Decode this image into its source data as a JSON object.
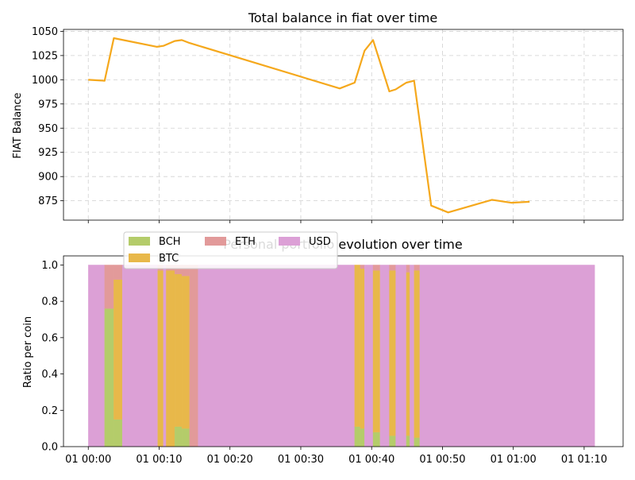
{
  "chart_data": [
    {
      "type": "line",
      "title": "Total balance in fiat over time",
      "xlabel": "",
      "ylabel": "FIAT Balance",
      "ylim": [
        855,
        1052
      ],
      "xlim": [
        -3.5,
        75.5
      ],
      "grid": true,
      "x_ticks": [
        0,
        10,
        20,
        30,
        40,
        50,
        60,
        70
      ],
      "y_ticks": [
        875,
        900,
        925,
        950,
        975,
        1000,
        1025,
        1050
      ],
      "y_tick_labels": [
        "875",
        "900",
        "925",
        "950",
        "975",
        "1000",
        "1025",
        "1050"
      ],
      "line_color": "#f5a81c",
      "series": [
        {
          "name": "FIAT Balance",
          "x": [
            0,
            2.3,
            3.6,
            9.7,
            10.6,
            12.2,
            13.2,
            14.3,
            35.5,
            37.6,
            39.0,
            40.2,
            42.5,
            43.4,
            44.9,
            46.0,
            48.4,
            50.8,
            57.0,
            59.7,
            62.3
          ],
          "y": [
            1000,
            999,
            1043,
            1034,
            1035,
            1040,
            1041,
            1038,
            991,
            997,
            1030,
            1041,
            988,
            990,
            997,
            999,
            870,
            863,
            876,
            873,
            874
          ]
        }
      ]
    },
    {
      "type": "area",
      "stacked": true,
      "title": "Personal portfolio evolution over time",
      "xlabel": "",
      "ylabel": "Ratio per coin",
      "ylim": [
        0,
        1.05
      ],
      "xlim": [
        -3.5,
        75.5
      ],
      "grid": false,
      "x_ticks": [
        0,
        10,
        20,
        30,
        40,
        50,
        60,
        70
      ],
      "x_tick_labels": [
        "01 00:00",
        "01 00:10",
        "01 00:20",
        "01 00:30",
        "01 00:40",
        "01 00:50",
        "01 01:00",
        "01 01:10"
      ],
      "y_ticks": [
        0,
        0.2,
        0.4,
        0.6,
        0.8,
        1.0
      ],
      "y_tick_labels": [
        "0.0",
        "0.2",
        "0.4",
        "0.6",
        "0.8",
        "1.0"
      ],
      "legend": {
        "location": "upper-left",
        "columns": 3,
        "entries": [
          {
            "label": "BCH",
            "color": "#b4cc6a"
          },
          {
            "label": "BTC",
            "color": "#e8b84a"
          },
          {
            "label": "ETH",
            "color": "#e29a9a"
          },
          {
            "label": "USD",
            "color": "#dca0d6"
          }
        ]
      },
      "segments": [
        {
          "x0": 0,
          "x1": 2.3,
          "BCH": 0,
          "BTC": 0,
          "ETH": 0,
          "USD": 1
        },
        {
          "x0": 2.3,
          "x1": 3.6,
          "BCH": 0.76,
          "BTC": 0,
          "ETH": 0.24,
          "USD": 0
        },
        {
          "x0": 3.6,
          "x1": 4.8,
          "BCH": 0.15,
          "BTC": 0.77,
          "ETH": 0.08,
          "USD": 0
        },
        {
          "x0": 4.8,
          "x1": 9.8,
          "BCH": 0,
          "BTC": 0,
          "ETH": 0,
          "USD": 1
        },
        {
          "x0": 9.8,
          "x1": 10.6,
          "BCH": 0,
          "BTC": 0.97,
          "ETH": 0.03,
          "USD": 0
        },
        {
          "x0": 10.6,
          "x1": 11.0,
          "BCH": 0,
          "BTC": 0,
          "ETH": 0,
          "USD": 1
        },
        {
          "x0": 11.0,
          "x1": 12.2,
          "BCH": 0,
          "BTC": 0.97,
          "ETH": 0.03,
          "USD": 0
        },
        {
          "x0": 12.2,
          "x1": 13.2,
          "BCH": 0.11,
          "BTC": 0.84,
          "ETH": 0.05,
          "USD": 0
        },
        {
          "x0": 13.2,
          "x1": 14.3,
          "BCH": 0.1,
          "BTC": 0.84,
          "ETH": 0.06,
          "USD": 0
        },
        {
          "x0": 14.3,
          "x1": 15.5,
          "BCH": 0,
          "BTC": 0,
          "ETH": 1.0,
          "USD": 0
        },
        {
          "x0": 15.5,
          "x1": 35.5,
          "BCH": 0,
          "BTC": 0,
          "ETH": 0,
          "USD": 1
        },
        {
          "x0": 35.5,
          "x1": 37.6,
          "BCH": 0,
          "BTC": 0,
          "ETH": 0,
          "USD": 1
        },
        {
          "x0": 37.6,
          "x1": 38.4,
          "BCH": 0.11,
          "BTC": 0.89,
          "ETH": 0,
          "USD": 0
        },
        {
          "x0": 38.4,
          "x1": 39.0,
          "BCH": 0.1,
          "BTC": 0.88,
          "ETH": 0.02,
          "USD": 0
        },
        {
          "x0": 39.0,
          "x1": 40.2,
          "BCH": 0,
          "BTC": 0,
          "ETH": 0,
          "USD": 1
        },
        {
          "x0": 40.2,
          "x1": 41.2,
          "BCH": 0.08,
          "BTC": 0.89,
          "ETH": 0.03,
          "USD": 0
        },
        {
          "x0": 41.2,
          "x1": 42.5,
          "BCH": 0,
          "BTC": 0,
          "ETH": 0,
          "USD": 1
        },
        {
          "x0": 42.5,
          "x1": 43.4,
          "BCH": 0.06,
          "BTC": 0.91,
          "ETH": 0.03,
          "USD": 0
        },
        {
          "x0": 43.4,
          "x1": 44.9,
          "BCH": 0,
          "BTC": 0,
          "ETH": 0,
          "USD": 1
        },
        {
          "x0": 44.9,
          "x1": 45.4,
          "BCH": 0.06,
          "BTC": 0.9,
          "ETH": 0.04,
          "USD": 0
        },
        {
          "x0": 45.4,
          "x1": 46.0,
          "BCH": 0,
          "BTC": 0,
          "ETH": 0,
          "USD": 1
        },
        {
          "x0": 46.0,
          "x1": 46.8,
          "BCH": 0.05,
          "BTC": 0.92,
          "ETH": 0.03,
          "USD": 0
        },
        {
          "x0": 46.8,
          "x1": 71.5,
          "BCH": 0,
          "BTC": 0,
          "ETH": 0,
          "USD": 1
        }
      ]
    }
  ]
}
